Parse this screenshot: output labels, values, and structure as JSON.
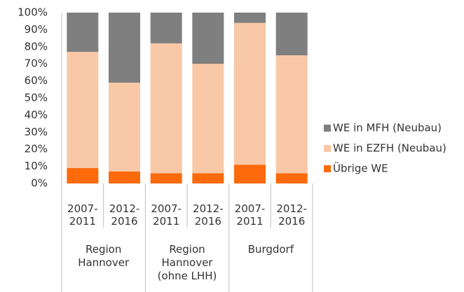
{
  "chart_data": {
    "type": "stacked_bar_100",
    "groups": [
      {
        "name": "Region Hannover",
        "categories": [
          "2007-2011",
          "2012-2016"
        ]
      },
      {
        "name": "Region Hannover (ohne LHH)",
        "categories": [
          "2007-2011",
          "2012-2016"
        ]
      },
      {
        "name": "Burgdorf",
        "categories": [
          "2007-2011",
          "2012-2016"
        ]
      }
    ],
    "series": [
      {
        "name": "Übrige WE",
        "color": "#fc6a0b",
        "values": [
          9,
          7,
          6,
          6,
          11,
          6
        ]
      },
      {
        "name": "WE in EZFH (Neubau)",
        "color": "#f9c8a6",
        "values": [
          68,
          52,
          76,
          64,
          83,
          69
        ]
      },
      {
        "name": "WE in MFH (Neubau)",
        "color": "#7f7f7f",
        "values": [
          23,
          41,
          18,
          30,
          6,
          25
        ]
      }
    ],
    "ylim": [
      0,
      100
    ],
    "yticks": [
      {
        "value": 0,
        "label": "0%"
      },
      {
        "value": 10,
        "label": "10%"
      },
      {
        "value": 20,
        "label": "20%"
      },
      {
        "value": 30,
        "label": "30%"
      },
      {
        "value": 40,
        "label": "40%"
      },
      {
        "value": 50,
        "label": "50%"
      },
      {
        "value": 60,
        "label": "60%"
      },
      {
        "value": 70,
        "label": "70%"
      },
      {
        "value": 80,
        "label": "80%"
      },
      {
        "value": 90,
        "label": "90%"
      },
      {
        "value": 100,
        "label": "100%"
      }
    ],
    "grid": false,
    "legend": "right"
  }
}
